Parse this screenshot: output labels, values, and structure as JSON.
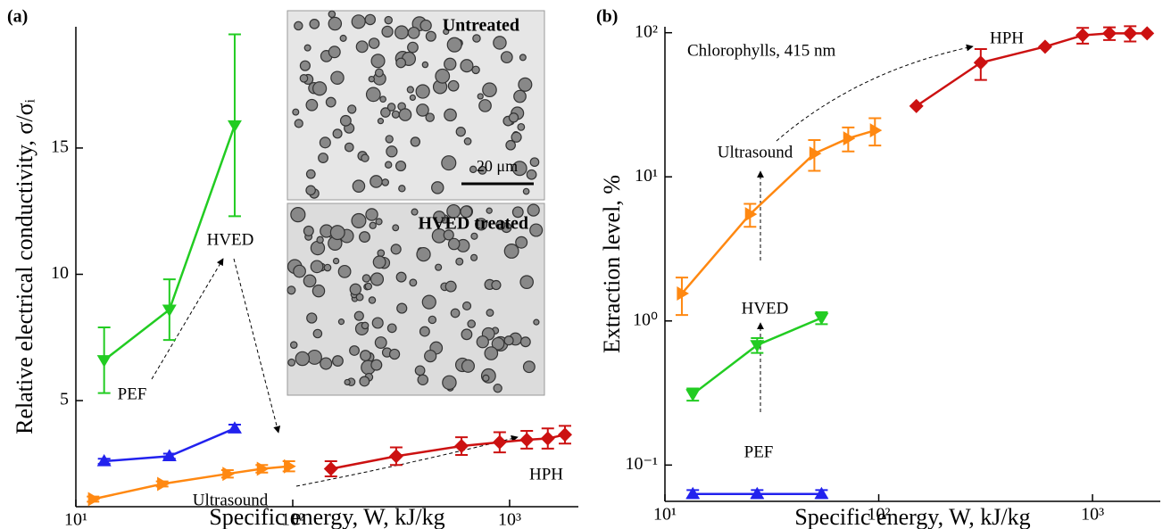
{
  "chart_data": [
    {
      "type": "line",
      "panel_label": "(a)",
      "xlabel": "Specific energy, W, kJ/kg",
      "ylabel": "Relative electrical conductivity, σ/σᵢ",
      "log_x": true,
      "log_y": false,
      "xlim": [
        10,
        2075
      ],
      "ylim": [
        0.8,
        19.8
      ],
      "xticks": [
        {
          "value": 10,
          "label": "10¹"
        },
        {
          "value": 100,
          "label": "10²"
        },
        {
          "value": 1000,
          "label": "10³"
        }
      ],
      "yticks": [
        5,
        10,
        15
      ],
      "inset_labels": [
        "Untreated",
        "HVED treated",
        "20 μm"
      ],
      "series": [
        {
          "name": "HVED",
          "color": "#22cc22",
          "marker": "triangle-down",
          "x": [
            13.5,
            27,
            54
          ],
          "values": [
            6.6,
            8.6,
            15.9
          ],
          "errors": [
            1.3,
            1.2,
            3.6
          ]
        },
        {
          "name": "PEF",
          "color": "#2222ee",
          "marker": "triangle-up",
          "x": [
            13.5,
            27,
            54
          ],
          "values": [
            2.6,
            2.8,
            3.9
          ],
          "errors": [
            0.1,
            0.1,
            0.15
          ]
        },
        {
          "name": "Ultrasound",
          "color": "#ff8811",
          "marker": "triangle-right",
          "x": [
            12,
            25,
            50,
            72,
            96
          ],
          "values": [
            1.1,
            1.7,
            2.1,
            2.3,
            2.4
          ],
          "errors": [
            0.1,
            0.1,
            0.15,
            0.15,
            0.2
          ]
        },
        {
          "name": "HPH",
          "color": "#cc1111",
          "marker": "diamond",
          "x": [
            150,
            300,
            600,
            900,
            1200,
            1500,
            1800
          ],
          "values": [
            2.3,
            2.8,
            3.2,
            3.35,
            3.45,
            3.5,
            3.65
          ],
          "errors": [
            0.3,
            0.35,
            0.35,
            0.4,
            0.35,
            0.4,
            0.35
          ]
        }
      ]
    },
    {
      "type": "line",
      "panel_label": "(b)",
      "xlabel": "Specific energy, W, kJ/kg",
      "ylabel": "Extraction level, %",
      "log_x": true,
      "log_y": true,
      "xlim": [
        10,
        2075
      ],
      "ylim": [
        0.056,
        110
      ],
      "xticks": [
        {
          "value": 10,
          "label": "10¹"
        },
        {
          "value": 100,
          "label": "10²"
        },
        {
          "value": 1000,
          "label": "10³"
        }
      ],
      "yticks": [
        {
          "value": 0.1,
          "label": "10⁻¹"
        },
        {
          "value": 1,
          "label": "10⁰"
        },
        {
          "value": 10,
          "label": "10¹"
        },
        {
          "value": 100,
          "label": "10²"
        }
      ],
      "annotation": "Chlorophylls, 415 nm",
      "series": [
        {
          "name": "HPH",
          "color": "#cc1111",
          "marker": "diamond",
          "x": [
            150,
            300,
            600,
            900,
            1200,
            1500,
            1800
          ],
          "values": [
            31,
            62,
            80,
            96,
            99,
            99,
            99
          ],
          "errors": [
            null,
            15,
            null,
            12,
            10,
            12,
            null
          ]
        },
        {
          "name": "Ultrasound",
          "color": "#ff8811",
          "marker": "triangle-right",
          "x": [
            12,
            25,
            50,
            72,
            96
          ],
          "values": [
            1.55,
            5.5,
            14.5,
            18.5,
            21
          ],
          "errors": [
            0.45,
            1,
            3.5,
            3.5,
            4.5
          ]
        },
        {
          "name": "HVED",
          "color": "#22cc22",
          "marker": "triangle-down",
          "x": [
            13.5,
            27,
            54
          ],
          "values": [
            0.31,
            0.68,
            1.05
          ],
          "errors": [
            0.03,
            0.08,
            0.1
          ]
        },
        {
          "name": "PEF",
          "color": "#2222ee",
          "marker": "triangle-up",
          "x": [
            13.5,
            27,
            54
          ],
          "values": [
            0.063,
            0.063,
            0.063
          ],
          "errors": [
            0.004,
            0.004,
            0.004
          ]
        }
      ]
    }
  ]
}
